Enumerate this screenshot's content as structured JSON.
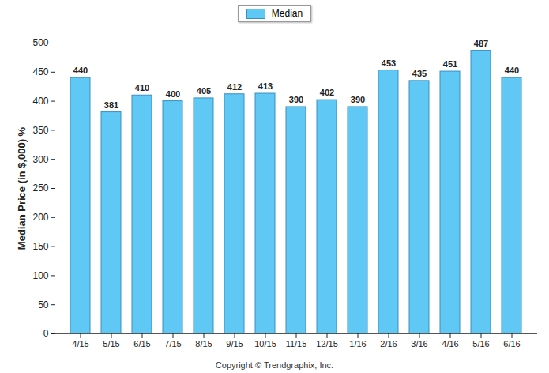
{
  "chart_data": {
    "type": "bar",
    "categories": [
      "4/15",
      "5/15",
      "6/15",
      "7/15",
      "8/15",
      "9/15",
      "10/15",
      "11/15",
      "12/15",
      "1/16",
      "2/16",
      "3/16",
      "4/16",
      "5/16",
      "6/16"
    ],
    "series": [
      {
        "name": "Median",
        "color": "#5fc8f5",
        "values": [
          440,
          381,
          410,
          400,
          405,
          412,
          413,
          390,
          402,
          390,
          453,
          435,
          451,
          487,
          440
        ]
      }
    ],
    "y_label": "Median Price (in $,000) %",
    "caption": "Copyright © Trendgraphix, Inc.",
    "ylim": [
      0,
      500
    ],
    "yticks": [
      0,
      50,
      100,
      150,
      200,
      250,
      300,
      350,
      400,
      450,
      500
    ],
    "grid": false,
    "legend": "top",
    "data_labels": true
  }
}
